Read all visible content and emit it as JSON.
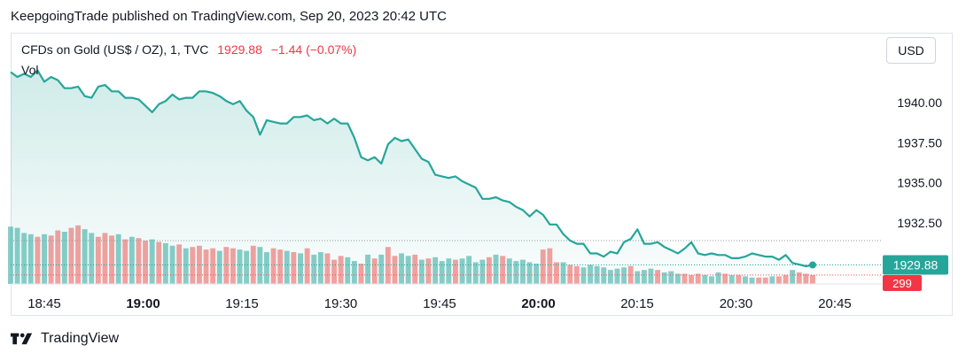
{
  "header": {
    "text": "KeepgoingTrade published on TradingView.com, Sep 20, 2023 20:42 UTC"
  },
  "legend": {
    "symbol": "CFDs on Gold (US$ / OZ), 1, TVC",
    "value": "1929.88",
    "change": "−1.44 (−0.07%)",
    "volume_label": "Vol"
  },
  "currency_button": "USD",
  "footer": {
    "brand": "TradingView"
  },
  "colors": {
    "line": "#26a69a",
    "up_vol": "#26a69a",
    "down_vol": "#ef5350",
    "last_price_badge": "#26a69a",
    "volume_badge": "#f23645"
  },
  "chart_data": {
    "type": "line",
    "y_ticks": [
      "1940.00",
      "1937.50",
      "1935.00",
      "1932.50"
    ],
    "x_ticks": [
      {
        "label": "18:45",
        "bold": false
      },
      {
        "label": "19:00",
        "bold": true
      },
      {
        "label": "19:15",
        "bold": false
      },
      {
        "label": "19:30",
        "bold": false
      },
      {
        "label": "19:45",
        "bold": false
      },
      {
        "label": "20:00",
        "bold": true
      },
      {
        "label": "20:15",
        "bold": false
      },
      {
        "label": "20:30",
        "bold": false
      },
      {
        "label": "20:45",
        "bold": false
      }
    ],
    "ylim": [
      1929.2,
      1943.4
    ],
    "last_price_label": "1929.88",
    "last_volume_label": "299",
    "close": [
      1941.9,
      1941.6,
      1941.8,
      1941.6,
      1942.0,
      1941.3,
      1941.6,
      1941.4,
      1940.9,
      1940.9,
      1941.0,
      1940.4,
      1940.3,
      1941.0,
      1941.1,
      1940.7,
      1940.7,
      1940.3,
      1940.3,
      1940.2,
      1939.8,
      1939.4,
      1939.9,
      1940.1,
      1940.5,
      1940.2,
      1940.3,
      1940.3,
      1940.7,
      1940.7,
      1940.6,
      1940.4,
      1940.1,
      1939.9,
      1940.1,
      1939.5,
      1939.1,
      1938.0,
      1938.9,
      1938.8,
      1938.7,
      1938.7,
      1939.1,
      1939.1,
      1939.2,
      1938.9,
      1939.0,
      1938.7,
      1939.0,
      1938.7,
      1938.7,
      1937.8,
      1936.6,
      1936.4,
      1936.6,
      1936.2,
      1937.4,
      1937.8,
      1937.6,
      1937.7,
      1937.1,
      1936.5,
      1936.3,
      1935.5,
      1935.4,
      1935.3,
      1935.4,
      1935.1,
      1934.9,
      1934.7,
      1934.0,
      1934.0,
      1934.1,
      1933.9,
      1933.8,
      1933.5,
      1933.3,
      1932.9,
      1933.3,
      1933.0,
      1932.4,
      1932.4,
      1931.8,
      1931.4,
      1931.2,
      1931.2,
      1930.6,
      1930.6,
      1930.4,
      1930.7,
      1930.6,
      1931.3,
      1931.5,
      1932.1,
      1931.2,
      1931.2,
      1931.3,
      1931.0,
      1930.8,
      1930.6,
      1930.9,
      1931.3,
      1930.6,
      1930.5,
      1930.6,
      1930.5,
      1930.5,
      1930.3,
      1930.3,
      1930.4,
      1930.6,
      1930.5,
      1930.4,
      1930.4,
      1930.2,
      1930.5,
      1930.0,
      1929.9,
      1929.8,
      1929.88
    ],
    "volume": [
      90,
      88,
      80,
      78,
      74,
      78,
      76,
      84,
      82,
      88,
      92,
      86,
      80,
      74,
      80,
      76,
      78,
      70,
      74,
      72,
      68,
      70,
      66,
      64,
      60,
      62,
      56,
      58,
      60,
      54,
      56,
      52,
      58,
      56,
      54,
      52,
      60,
      58,
      50,
      56,
      54,
      52,
      50,
      48,
      56,
      46,
      50,
      48,
      38,
      44,
      42,
      36,
      32,
      46,
      40,
      46,
      58,
      44,
      48,
      44,
      46,
      38,
      40,
      42,
      36,
      40,
      38,
      40,
      44,
      34,
      38,
      42,
      46,
      44,
      40,
      36,
      38,
      34,
      32,
      54,
      56,
      34,
      34,
      30,
      28,
      26,
      30,
      28,
      26,
      22,
      24,
      26,
      28,
      20,
      22,
      24,
      22,
      18,
      20,
      16,
      16,
      14,
      16,
      14,
      12,
      18,
      16,
      14,
      14,
      12,
      10,
      10,
      10,
      12,
      12,
      14,
      22,
      18,
      16,
      14
    ],
    "volume_up": [
      1,
      1,
      1,
      1,
      0,
      1,
      0,
      0,
      1,
      0,
      0,
      1,
      1,
      0,
      0,
      0,
      1,
      0,
      1,
      0,
      0,
      1,
      0,
      1,
      1,
      0,
      1,
      0,
      0,
      0,
      0,
      1,
      0,
      0,
      1,
      1,
      0,
      1,
      1,
      0,
      0,
      1,
      0,
      1,
      0,
      1,
      1,
      0,
      0,
      0,
      1,
      1,
      0,
      1,
      0,
      1,
      0,
      0,
      1,
      1,
      0,
      1,
      0,
      1,
      1,
      1,
      0,
      1,
      1,
      1,
      1,
      0,
      1,
      0,
      1,
      1,
      1,
      1,
      1,
      0,
      0,
      0,
      1,
      0,
      0,
      1,
      1,
      1,
      1,
      1,
      1,
      1,
      0,
      1,
      1,
      1,
      0,
      1,
      1,
      1,
      0,
      0,
      0,
      1,
      1,
      1,
      0,
      1,
      0,
      1,
      1,
      0,
      0,
      1,
      0,
      0,
      1,
      0,
      0,
      0
    ],
    "volume_scale_max": 100
  }
}
